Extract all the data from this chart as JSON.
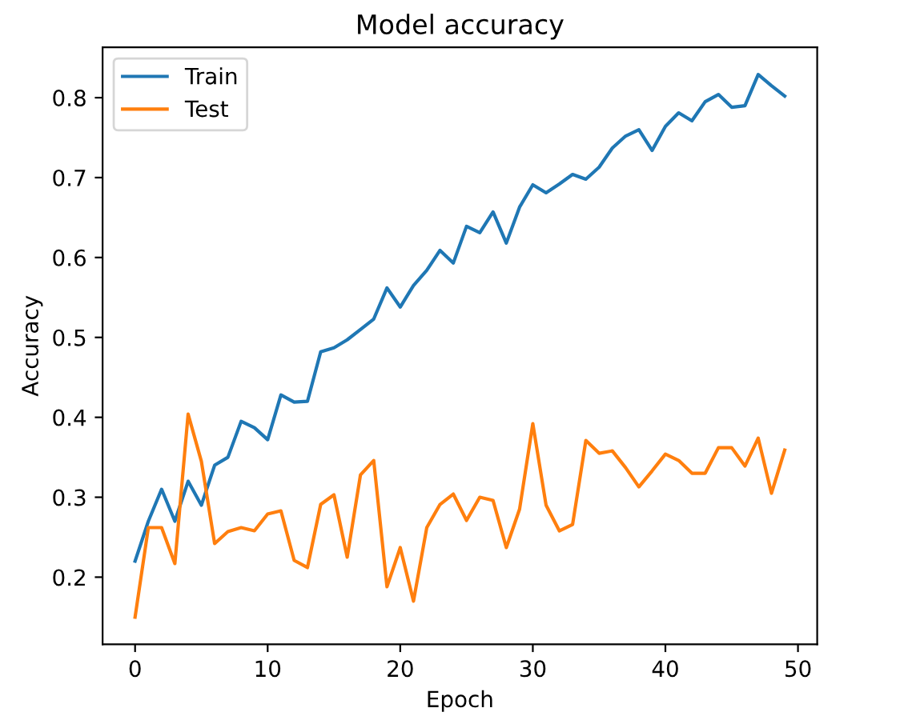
{
  "chart_data": {
    "type": "line",
    "title": "Model accuracy",
    "xlabel": "Epoch",
    "ylabel": "Accuracy",
    "x": [
      0,
      1,
      2,
      3,
      4,
      5,
      6,
      7,
      8,
      9,
      10,
      11,
      12,
      13,
      14,
      15,
      16,
      17,
      18,
      19,
      20,
      21,
      22,
      23,
      24,
      25,
      26,
      27,
      28,
      29,
      30,
      31,
      32,
      33,
      34,
      35,
      36,
      37,
      38,
      39,
      40,
      41,
      42,
      43,
      44,
      45,
      46,
      47,
      48,
      49
    ],
    "series": [
      {
        "name": "Train",
        "color": "#1f77b4",
        "values": [
          0.22,
          0.27,
          0.31,
          0.27,
          0.32,
          0.29,
          0.34,
          0.35,
          0.395,
          0.387,
          0.372,
          0.428,
          0.419,
          0.42,
          0.482,
          0.487,
          0.497,
          0.51,
          0.523,
          0.562,
          0.538,
          0.565,
          0.584,
          0.609,
          0.593,
          0.639,
          0.631,
          0.657,
          0.618,
          0.663,
          0.691,
          0.681,
          0.692,
          0.704,
          0.698,
          0.713,
          0.737,
          0.752,
          0.76,
          0.734,
          0.764,
          0.781,
          0.771,
          0.795,
          0.804,
          0.788,
          0.79,
          0.829,
          0.815,
          0.802
        ]
      },
      {
        "name": "Test",
        "color": "#ff7f0e",
        "values": [
          0.15,
          0.262,
          0.262,
          0.217,
          0.404,
          0.345,
          0.242,
          0.257,
          0.262,
          0.258,
          0.279,
          0.283,
          0.221,
          0.212,
          0.291,
          0.303,
          0.225,
          0.328,
          0.346,
          0.188,
          0.237,
          0.17,
          0.262,
          0.291,
          0.304,
          0.271,
          0.3,
          0.296,
          0.237,
          0.285,
          0.392,
          0.29,
          0.258,
          0.266,
          0.371,
          0.355,
          0.358,
          0.337,
          0.313,
          0.333,
          0.354,
          0.346,
          0.33,
          0.33,
          0.362,
          0.362,
          0.339,
          0.374,
          0.305,
          0.359
        ]
      }
    ],
    "xlim": [
      -2.45,
      51.45
    ],
    "ylim": [
      0.116,
      0.863
    ],
    "xticks": [
      0,
      10,
      20,
      30,
      40,
      50
    ],
    "yticks": [
      0.2,
      0.3,
      0.4,
      0.5,
      0.6,
      0.7,
      0.8
    ],
    "legend": "upper left",
    "grid": false
  }
}
